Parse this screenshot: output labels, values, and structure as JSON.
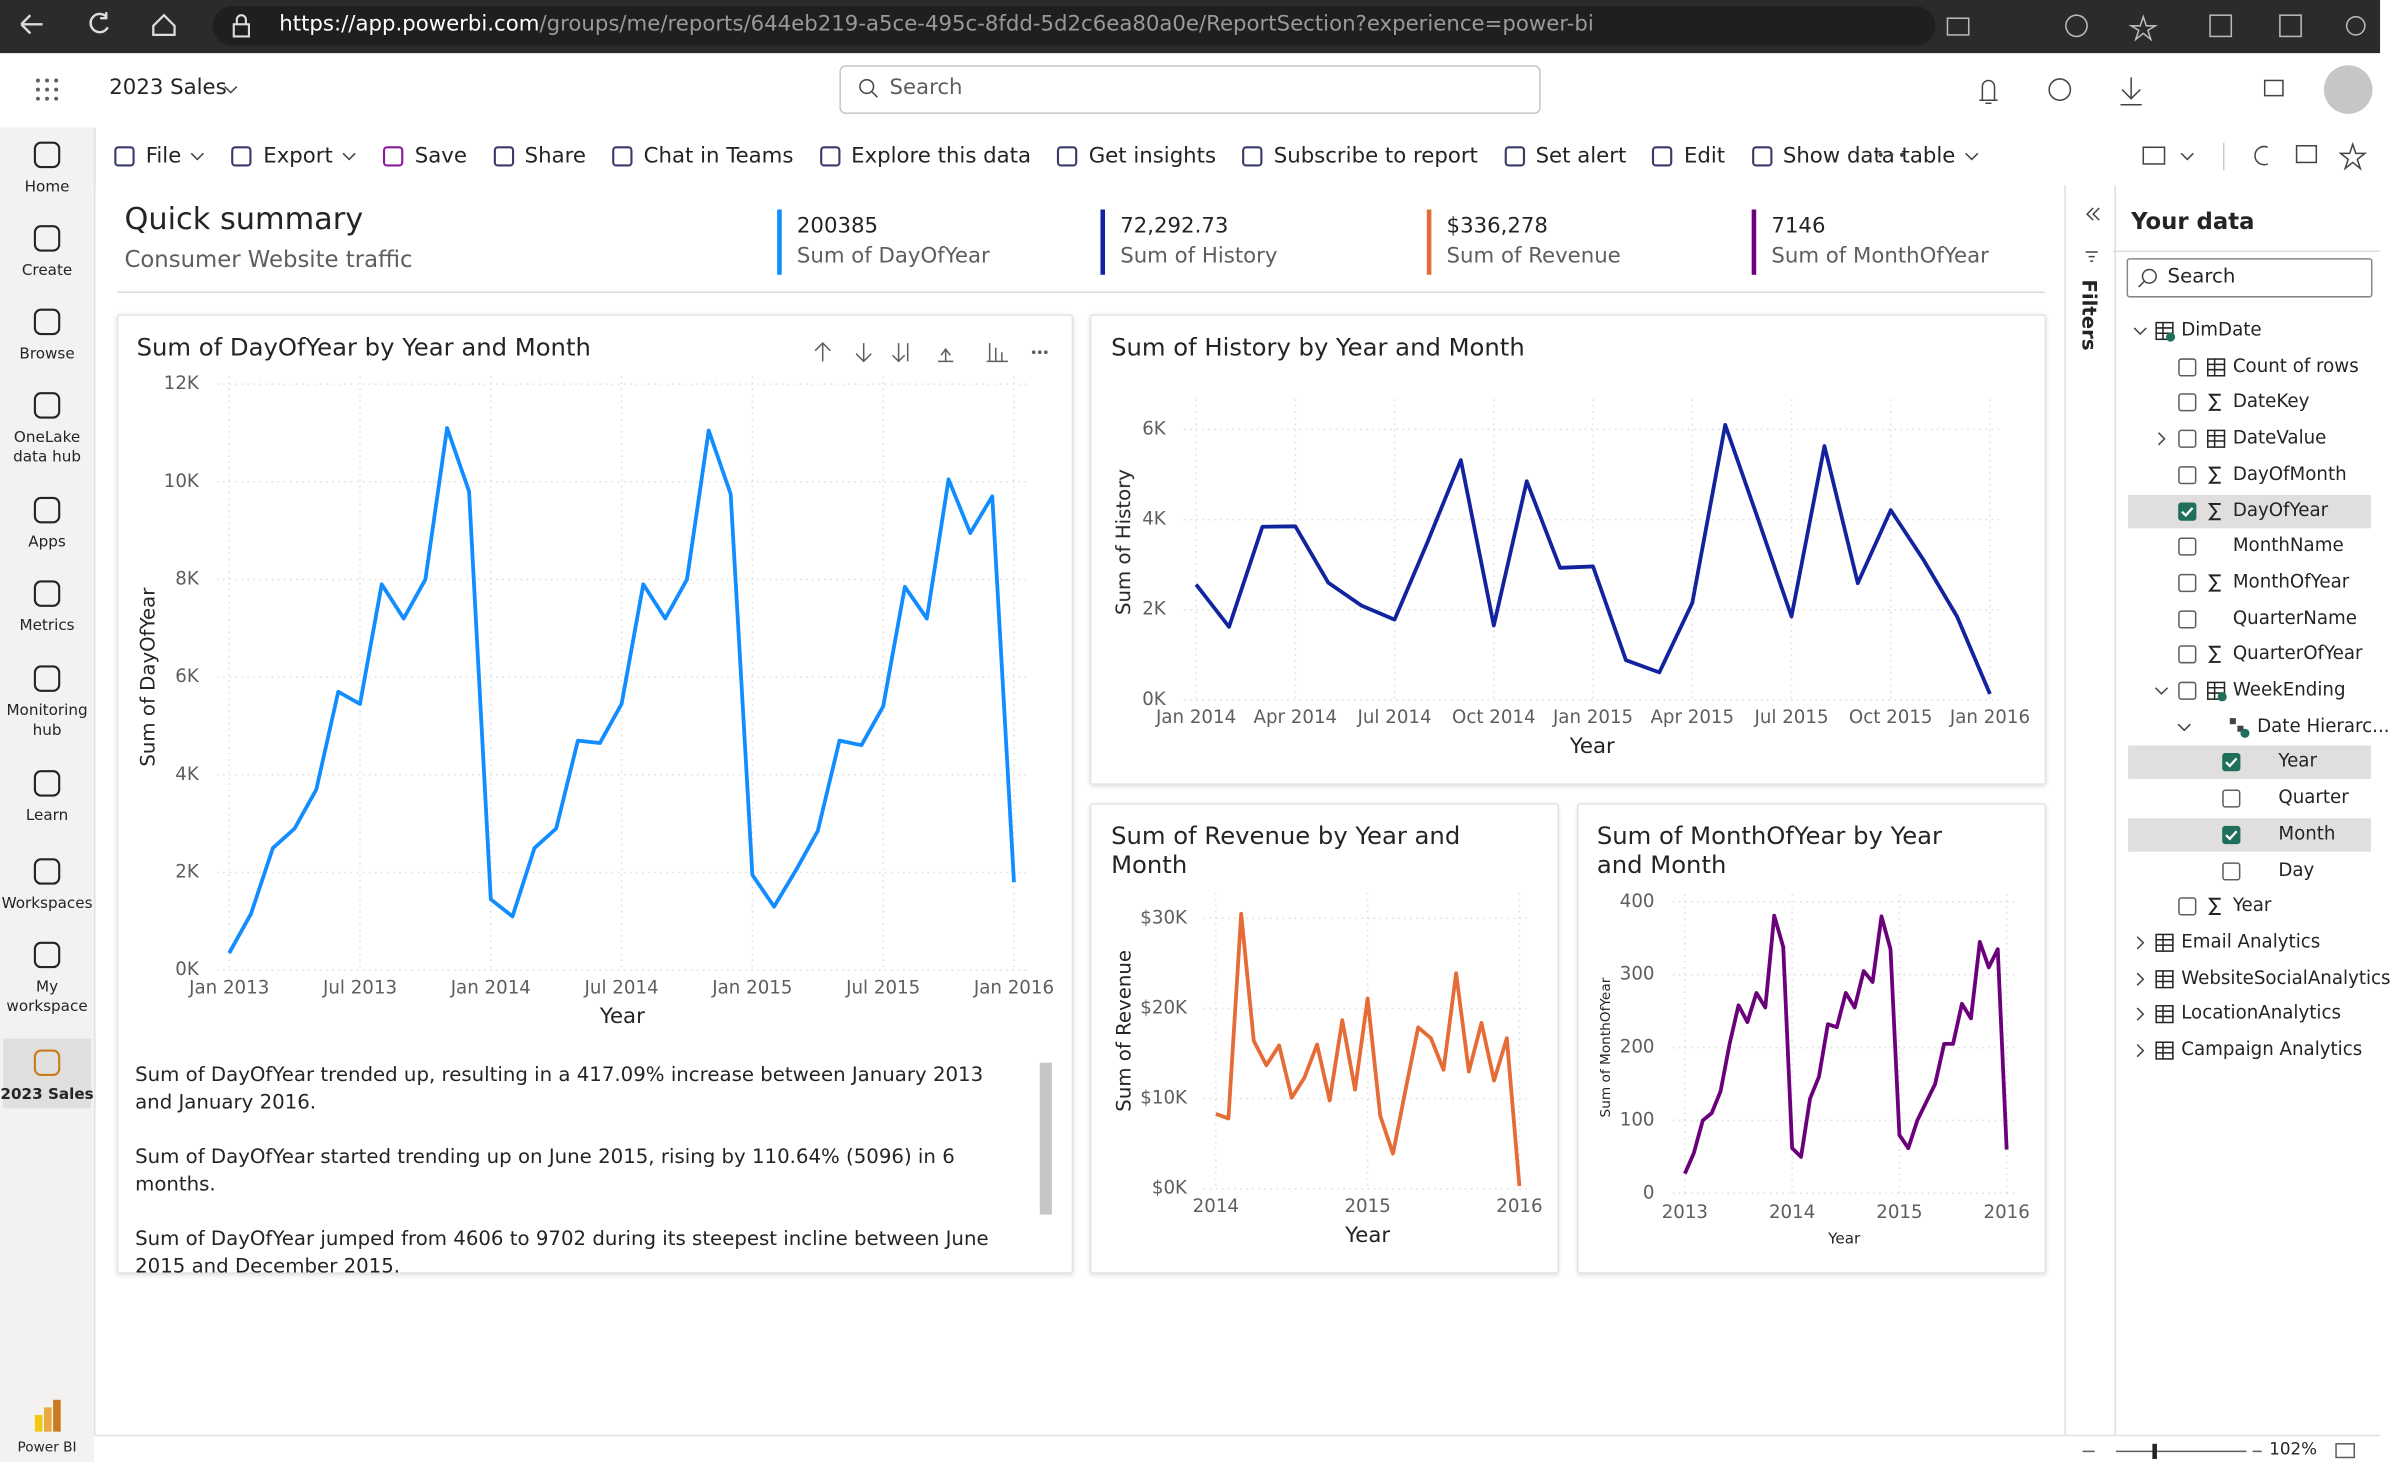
{
  "browser": {
    "url_host": "https://app.powerbi.com",
    "url_path": "/groups/me/reports/644eb219-a5ce-495c-8fdd-5d2c6ea80a0e/ReportSection?experience=power-bi"
  },
  "header": {
    "report_name": "2023 Sales",
    "search_placeholder": "Search"
  },
  "nav": [
    {
      "label": "Home"
    },
    {
      "label": "Create"
    },
    {
      "label": "Browse"
    },
    {
      "label": "OneLake data hub"
    },
    {
      "label": "Apps"
    },
    {
      "label": "Metrics"
    },
    {
      "label": "Monitoring hub"
    },
    {
      "label": "Learn"
    },
    {
      "label": "Workspaces"
    },
    {
      "label": "My workspace"
    },
    {
      "label": "2023 Sales",
      "selected": true
    }
  ],
  "brand": "Power BI",
  "toolbar": [
    {
      "label": "File",
      "menu": true
    },
    {
      "label": "Export",
      "menu": true
    },
    {
      "label": "Save"
    },
    {
      "label": "Share"
    },
    {
      "label": "Chat in Teams"
    },
    {
      "label": "Explore this data"
    },
    {
      "label": "Get insights"
    },
    {
      "label": "Subscribe to report"
    },
    {
      "label": "Set alert"
    },
    {
      "label": "Edit"
    },
    {
      "label": "Show data table",
      "menu": true
    }
  ],
  "summary": {
    "title": "Quick summary",
    "subtitle": "Consumer Website traffic",
    "cards": [
      {
        "value": "200385",
        "label": "Sum of DayOfYear",
        "color": "#118dff"
      },
      {
        "value": "72,292.73",
        "label": "Sum of History",
        "color": "#12239e"
      },
      {
        "value": "$336,278",
        "label": "Sum of Revenue",
        "color": "#e66c37"
      },
      {
        "value": "7146",
        "label": "Sum of MonthOfYear",
        "color": "#6b007b"
      }
    ]
  },
  "chart_data": [
    {
      "type": "line",
      "title": "Sum of DayOfYear by Year and Month",
      "x_label": "Year",
      "y_label": "Sum of DayOfYear",
      "color": "#118dff",
      "grid": true,
      "x": [
        2013,
        2013.083,
        2013.167,
        2013.25,
        2013.333,
        2013.417,
        2013.5,
        2013.583,
        2013.667,
        2013.75,
        2013.833,
        2013.917,
        2014,
        2014.083,
        2014.167,
        2014.25,
        2014.333,
        2014.417,
        2014.5,
        2014.583,
        2014.667,
        2014.75,
        2014.833,
        2014.917,
        2015,
        2015.083,
        2015.167,
        2015.25,
        2015.333,
        2015.417,
        2015.5,
        2015.583,
        2015.667,
        2015.75,
        2015.833,
        2015.917,
        2016
      ],
      "values": [
        350,
        1150,
        2500,
        2900,
        3700,
        5700,
        5450,
        7900,
        7200,
        8000,
        11100,
        9800,
        1450,
        1100,
        2500,
        2900,
        4700,
        4650,
        5450,
        7900,
        7200,
        8000,
        11050,
        9750,
        1950,
        1300,
        2050,
        2850,
        4700,
        4606,
        5400,
        7850,
        7200,
        10050,
        8950,
        9702,
        1800
      ],
      "xlim": [
        2013,
        2016
      ],
      "ylim": [
        0,
        12000
      ],
      "xticks": [
        {
          "value": 2013,
          "label": "Jan 2013"
        },
        {
          "value": 2013.5,
          "label": "Jul 2013"
        },
        {
          "value": 2014,
          "label": "Jan 2014"
        },
        {
          "value": 2014.5,
          "label": "Jul 2014"
        },
        {
          "value": 2015,
          "label": "Jan 2015"
        },
        {
          "value": 2015.5,
          "label": "Jul 2015"
        },
        {
          "value": 2016,
          "label": "Jan 2016"
        }
      ],
      "yticks": [
        {
          "value": 0,
          "label": "0K"
        },
        {
          "value": 2000,
          "label": "2K"
        },
        {
          "value": 4000,
          "label": "4K"
        },
        {
          "value": 6000,
          "label": "6K"
        },
        {
          "value": 8000,
          "label": "8K"
        },
        {
          "value": 10000,
          "label": "10K"
        },
        {
          "value": 12000,
          "label": "12K"
        }
      ]
    },
    {
      "type": "line",
      "title": "Sum of History by Year and Month",
      "x_label": "Year",
      "y_label": "Sum of History",
      "color": "#12239e",
      "grid": true,
      "x": [
        2014,
        2014.083,
        2014.167,
        2014.25,
        2014.333,
        2014.417,
        2014.5,
        2014.583,
        2014.667,
        2014.75,
        2014.833,
        2014.917,
        2015,
        2015.083,
        2015.167,
        2015.25,
        2015.333,
        2015.417,
        2015.5,
        2015.583,
        2015.667,
        2015.75,
        2015.833,
        2015.917,
        2016
      ],
      "values": [
        2560,
        1620,
        3840,
        3850,
        2600,
        2090,
        1780,
        3500,
        5320,
        1650,
        4850,
        2930,
        2960,
        880,
        610,
        2150,
        6100,
        3980,
        1850,
        5630,
        2590,
        4210,
        3100,
        1850,
        130
      ],
      "xlim": [
        2014,
        2016
      ],
      "ylim": [
        0,
        6500
      ],
      "xticks": [
        {
          "value": 2014,
          "label": "Jan 2014"
        },
        {
          "value": 2014.25,
          "label": "Apr 2014"
        },
        {
          "value": 2014.5,
          "label": "Jul 2014"
        },
        {
          "value": 2014.75,
          "label": "Oct 2014"
        },
        {
          "value": 2015,
          "label": "Jan 2015"
        },
        {
          "value": 2015.25,
          "label": "Apr 2015"
        },
        {
          "value": 2015.5,
          "label": "Jul 2015"
        },
        {
          "value": 2015.75,
          "label": "Oct 2015"
        },
        {
          "value": 2016,
          "label": "Jan 2016"
        }
      ],
      "yticks": [
        {
          "value": 0,
          "label": "0K"
        },
        {
          "value": 2000,
          "label": "2K"
        },
        {
          "value": 4000,
          "label": "4K"
        },
        {
          "value": 6000,
          "label": "6K"
        }
      ]
    },
    {
      "type": "line",
      "title": "Sum of Revenue by Year and Month",
      "x_label": "Year",
      "y_label": "Sum of Revenue",
      "color": "#e66c37",
      "grid": true,
      "x": [
        2014,
        2014.083,
        2014.167,
        2014.25,
        2014.333,
        2014.417,
        2014.5,
        2014.583,
        2014.667,
        2014.75,
        2014.833,
        2014.917,
        2015,
        2015.083,
        2015.167,
        2015.25,
        2015.333,
        2015.417,
        2015.5,
        2015.583,
        2015.667,
        2015.75,
        2015.833,
        2015.917,
        2016
      ],
      "values": [
        8300,
        7800,
        30500,
        16400,
        13700,
        15900,
        10100,
        12300,
        16000,
        9800,
        18700,
        11000,
        21100,
        8100,
        3900,
        11000,
        17900,
        16700,
        13200,
        23900,
        13000,
        18400,
        12000,
        16700,
        300
      ],
      "xlim": [
        2014,
        2016
      ],
      "ylim": [
        0,
        32000
      ],
      "xticks": [
        2014,
        2015,
        2016
      ],
      "yticks": [
        {
          "value": 0,
          "label": "$0K"
        },
        {
          "value": 10000,
          "label": "$10K"
        },
        {
          "value": 20000,
          "label": "$20K"
        },
        {
          "value": 30000,
          "label": "$30K"
        }
      ]
    },
    {
      "type": "line",
      "title": "Sum of MonthOfYear by Year and Month",
      "x_label": "Year",
      "y_label": "Sum of MonthOfYear",
      "color": "#6b007b",
      "grid": true,
      "x": [
        2013,
        2013.083,
        2013.167,
        2013.25,
        2013.333,
        2013.417,
        2013.5,
        2013.583,
        2013.667,
        2013.75,
        2013.833,
        2013.917,
        2014,
        2014.083,
        2014.167,
        2014.25,
        2014.333,
        2014.417,
        2014.5,
        2014.583,
        2014.667,
        2014.75,
        2014.833,
        2014.917,
        2015,
        2015.083,
        2015.167,
        2015.25,
        2015.333,
        2015.417,
        2015.5,
        2015.583,
        2015.667,
        2015.75,
        2015.833,
        2015.917,
        2016
      ],
      "values": [
        27,
        55,
        100,
        110,
        140,
        205,
        258,
        235,
        275,
        255,
        381,
        338,
        62,
        50,
        130,
        160,
        232,
        228,
        275,
        255,
        305,
        290,
        380,
        335,
        80,
        62,
        100,
        125,
        150,
        205,
        205,
        260,
        240,
        345,
        310,
        335,
        60
      ],
      "xlim": [
        2013,
        2016
      ],
      "ylim": [
        0,
        400
      ],
      "xticks": [
        2013,
        2014,
        2015,
        2016
      ],
      "yticks": [
        0,
        100,
        200,
        300,
        400
      ]
    }
  ],
  "narrative": [
    "Sum of DayOfYear trended up, resulting in a 417.09% increase between January 2013 and January 2016.",
    "Sum of DayOfYear started trending up on June 2015, rising by 110.64% (5096) in 6 months.",
    "Sum of DayOfYear jumped from 4606 to 9702 during its steepest incline between June 2015 and December 2015."
  ],
  "filters_label": "Filters",
  "data_pane": {
    "title": "Your data",
    "search_placeholder": "Search",
    "fields": [
      {
        "label": "DimDate",
        "level": 0,
        "icon": "table",
        "expanded": true
      },
      {
        "label": "Count of rows",
        "level": 1,
        "icon": "calc",
        "checked": false
      },
      {
        "label": "DateKey",
        "level": 1,
        "icon": "sigma",
        "checked": false
      },
      {
        "label": "DateValue",
        "level": 1,
        "icon": "calendar",
        "checked": false,
        "expanded": false
      },
      {
        "label": "DayOfMonth",
        "level": 1,
        "icon": "sigma",
        "checked": false
      },
      {
        "label": "DayOfYear",
        "level": 1,
        "icon": "sigma",
        "checked": true
      },
      {
        "label": "MonthName",
        "level": 1,
        "checked": false
      },
      {
        "label": "MonthOfYear",
        "level": 1,
        "icon": "sigma",
        "checked": false
      },
      {
        "label": "QuarterName",
        "level": 1,
        "checked": false
      },
      {
        "label": "QuarterOfYear",
        "level": 1,
        "icon": "sigma",
        "checked": false
      },
      {
        "label": "WeekEnding",
        "level": 1,
        "icon": "calendar",
        "checked": false,
        "expanded": true
      },
      {
        "label": "Date Hierarc...",
        "level": 2,
        "icon": "hierarchy",
        "expanded": true
      },
      {
        "label": "Year",
        "level": 3,
        "checked": true
      },
      {
        "label": "Quarter",
        "level": 3,
        "checked": false
      },
      {
        "label": "Month",
        "level": 3,
        "checked": true
      },
      {
        "label": "Day",
        "level": 3,
        "checked": false
      },
      {
        "label": "Year",
        "level": 1,
        "icon": "sigma",
        "checked": false
      },
      {
        "label": "Email Analytics",
        "level": 0,
        "icon": "table",
        "expanded": false
      },
      {
        "label": "WebsiteSocialAnalytics",
        "level": 0,
        "icon": "table",
        "expanded": false
      },
      {
        "label": "LocationAnalytics",
        "level": 0,
        "icon": "table",
        "expanded": false
      },
      {
        "label": "Campaign Analytics",
        "level": 0,
        "icon": "table",
        "expanded": false
      }
    ]
  },
  "zoom": "102%"
}
